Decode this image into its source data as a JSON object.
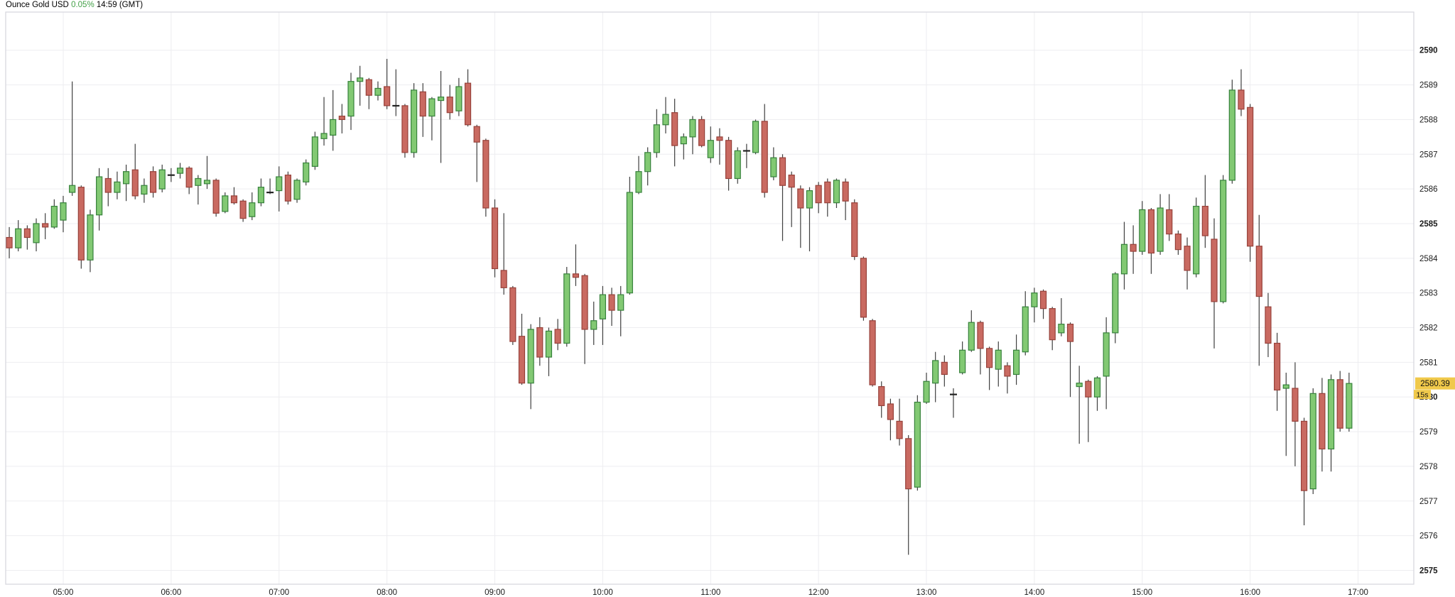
{
  "header": {
    "instrument": "Ounce Gold USD",
    "change_pct": "0.05%",
    "quote_time": "14:59 (GMT)"
  },
  "marker": {
    "current_price": "2580.39",
    "countdown": "15s"
  },
  "colors": {
    "up_fill": "#82c973",
    "up_border": "#37823c",
    "down_fill": "#c96a61",
    "down_border": "#97423b",
    "wick": "#3f3f3f",
    "doji": "#222222",
    "grid": "#ededf0",
    "plot_border": "#d8d8df",
    "marker_bg": "#f0c94b",
    "marker_text": "#111111",
    "axis_text": "#1a1a1a",
    "pct_green": "#43a047",
    "background": "#ffffff"
  },
  "chart_data": {
    "type": "candlestick",
    "title": "Ounce Gold USD 0.05% 14:59 (GMT)",
    "interval": "5m",
    "ylim": [
      2574.6,
      2591.1
    ],
    "time_range": [
      "04:28",
      "17:31"
    ],
    "grid": true,
    "price_ticks": [
      2575,
      2576,
      2577,
      2578,
      2579,
      2580,
      2581,
      2582,
      2583,
      2584,
      2585,
      2586,
      2587,
      2588,
      2589,
      2590
    ],
    "bold_price_ticks": [
      2575,
      2580,
      2585,
      2590
    ],
    "time_ticks": [
      "05:00",
      "06:00",
      "07:00",
      "08:00",
      "09:00",
      "10:00",
      "11:00",
      "12:00",
      "13:00",
      "14:00",
      "15:00",
      "16:00",
      "17:00"
    ],
    "last_price": 2580.39,
    "candles": [
      [
        "04:30",
        2584.6,
        2584.9,
        2584.0,
        2584.3
      ],
      [
        "04:35",
        2584.3,
        2585.1,
        2584.2,
        2584.85
      ],
      [
        "04:40",
        2584.85,
        2584.95,
        2584.25,
        2584.6
      ],
      [
        "04:45",
        2584.45,
        2585.15,
        2584.2,
        2585.0
      ],
      [
        "04:50",
        2585.0,
        2585.3,
        2584.55,
        2584.9
      ],
      [
        "04:55",
        2584.9,
        2585.7,
        2584.85,
        2585.5
      ],
      [
        "05:00",
        2585.1,
        2585.8,
        2584.75,
        2585.6
      ],
      [
        "05:05",
        2585.9,
        2589.1,
        2585.8,
        2586.1
      ],
      [
        "05:10",
        2586.05,
        2586.1,
        2583.7,
        2583.95
      ],
      [
        "05:15",
        2583.95,
        2585.4,
        2583.6,
        2585.25
      ],
      [
        "05:20",
        2585.25,
        2586.6,
        2584.8,
        2586.35
      ],
      [
        "05:25",
        2586.3,
        2586.6,
        2585.5,
        2585.9
      ],
      [
        "05:30",
        2585.9,
        2586.5,
        2585.7,
        2586.2
      ],
      [
        "05:35",
        2586.15,
        2586.7,
        2585.65,
        2586.5
      ],
      [
        "05:40",
        2586.55,
        2587.3,
        2585.7,
        2585.8
      ],
      [
        "05:45",
        2585.85,
        2586.3,
        2585.6,
        2586.1
      ],
      [
        "05:50",
        2586.5,
        2586.65,
        2585.75,
        2585.9
      ],
      [
        "05:55",
        2586.0,
        2586.7,
        2585.9,
        2586.55
      ],
      [
        "06:00",
        2586.4,
        2586.6,
        2586.2,
        2586.4
      ],
      [
        "06:05",
        2586.45,
        2586.75,
        2586.3,
        2586.6
      ],
      [
        "06:10",
        2586.6,
        2586.65,
        2585.85,
        2586.05
      ],
      [
        "06:15",
        2586.1,
        2586.4,
        2585.55,
        2586.3
      ],
      [
        "06:20",
        2586.15,
        2586.95,
        2586.0,
        2586.25
      ],
      [
        "06:25",
        2586.25,
        2586.3,
        2585.2,
        2585.3
      ],
      [
        "06:30",
        2585.35,
        2585.9,
        2585.3,
        2585.8
      ],
      [
        "06:35",
        2585.8,
        2586.05,
        2585.55,
        2585.6
      ],
      [
        "06:40",
        2585.65,
        2585.7,
        2585.05,
        2585.15
      ],
      [
        "06:45",
        2585.2,
        2585.9,
        2585.1,
        2585.6
      ],
      [
        "06:50",
        2585.6,
        2586.3,
        2585.5,
        2586.05
      ],
      [
        "06:55",
        2585.9,
        2586.3,
        2585.85,
        2585.9
      ],
      [
        "07:00",
        2585.95,
        2586.65,
        2585.35,
        2586.35
      ],
      [
        "07:05",
        2586.4,
        2586.5,
        2585.55,
        2585.65
      ],
      [
        "07:10",
        2585.7,
        2586.3,
        2585.6,
        2586.25
      ],
      [
        "07:15",
        2586.2,
        2586.85,
        2586.1,
        2586.75
      ],
      [
        "07:20",
        2586.65,
        2587.65,
        2586.55,
        2587.5
      ],
      [
        "07:25",
        2587.45,
        2588.65,
        2587.25,
        2587.6
      ],
      [
        "07:30",
        2587.55,
        2588.85,
        2587.1,
        2588.0
      ],
      [
        "07:35",
        2588.1,
        2588.45,
        2587.6,
        2588.0
      ],
      [
        "07:40",
        2588.1,
        2589.35,
        2587.7,
        2589.1
      ],
      [
        "07:45",
        2589.1,
        2589.55,
        2588.4,
        2589.2
      ],
      [
        "07:50",
        2589.15,
        2589.2,
        2588.3,
        2588.7
      ],
      [
        "07:55",
        2588.7,
        2589.1,
        2588.55,
        2588.9
      ],
      [
        "08:00",
        2588.95,
        2589.75,
        2588.3,
        2588.4
      ],
      [
        "08:05",
        2588.4,
        2589.45,
        2588.1,
        2588.4
      ],
      [
        "08:10",
        2588.4,
        2588.45,
        2586.9,
        2587.05
      ],
      [
        "08:15",
        2587.05,
        2589.05,
        2586.9,
        2588.85
      ],
      [
        "08:20",
        2588.8,
        2589.05,
        2587.5,
        2588.1
      ],
      [
        "08:25",
        2588.1,
        2588.65,
        2587.4,
        2588.6
      ],
      [
        "08:30",
        2588.55,
        2589.4,
        2586.75,
        2588.65
      ],
      [
        "08:35",
        2588.65,
        2589.0,
        2588.0,
        2588.2
      ],
      [
        "08:40",
        2588.25,
        2589.2,
        2588.1,
        2588.95
      ],
      [
        "08:45",
        2589.05,
        2589.45,
        2587.8,
        2587.85
      ],
      [
        "08:50",
        2587.8,
        2587.85,
        2586.2,
        2587.35
      ],
      [
        "08:55",
        2587.4,
        2587.45,
        2585.2,
        2585.45
      ],
      [
        "09:00",
        2585.45,
        2585.7,
        2583.45,
        2583.7
      ],
      [
        "09:05",
        2583.65,
        2585.3,
        2582.95,
        2583.15
      ],
      [
        "09:10",
        2583.15,
        2583.2,
        2581.5,
        2581.6
      ],
      [
        "09:15",
        2581.75,
        2582.4,
        2580.35,
        2580.4
      ],
      [
        "09:20",
        2580.4,
        2582.1,
        2579.65,
        2581.95
      ],
      [
        "09:25",
        2582.0,
        2582.3,
        2580.9,
        2581.15
      ],
      [
        "09:30",
        2581.15,
        2582.0,
        2580.6,
        2581.9
      ],
      [
        "09:35",
        2581.95,
        2582.25,
        2581.35,
        2581.55
      ],
      [
        "09:40",
        2581.55,
        2583.75,
        2581.45,
        2583.55
      ],
      [
        "09:45",
        2583.55,
        2584.4,
        2583.2,
        2583.45
      ],
      [
        "09:50",
        2583.5,
        2583.55,
        2580.95,
        2581.95
      ],
      [
        "09:55",
        2581.95,
        2582.75,
        2581.5,
        2582.2
      ],
      [
        "10:00",
        2582.25,
        2583.2,
        2581.5,
        2582.95
      ],
      [
        "10:05",
        2582.95,
        2583.15,
        2582.05,
        2582.5
      ],
      [
        "10:10",
        2582.5,
        2583.2,
        2581.75,
        2582.95
      ],
      [
        "10:15",
        2583.0,
        2586.35,
        2582.95,
        2585.9
      ],
      [
        "10:20",
        2585.9,
        2586.95,
        2585.85,
        2586.5
      ],
      [
        "10:25",
        2586.5,
        2587.2,
        2586.1,
        2587.05
      ],
      [
        "10:30",
        2587.05,
        2588.3,
        2586.9,
        2587.85
      ],
      [
        "10:35",
        2587.85,
        2588.65,
        2587.6,
        2588.15
      ],
      [
        "10:40",
        2588.2,
        2588.6,
        2586.65,
        2587.25
      ],
      [
        "10:45",
        2587.3,
        2587.6,
        2586.85,
        2587.5
      ],
      [
        "10:50",
        2587.5,
        2588.1,
        2587.0,
        2588.0
      ],
      [
        "10:55",
        2588.0,
        2588.1,
        2587.2,
        2587.25
      ],
      [
        "11:00",
        2586.9,
        2587.8,
        2586.75,
        2587.4
      ],
      [
        "11:05",
        2587.5,
        2587.75,
        2586.7,
        2587.4
      ],
      [
        "11:10",
        2587.4,
        2587.5,
        2585.95,
        2586.3
      ],
      [
        "11:15",
        2586.3,
        2587.2,
        2586.15,
        2587.1
      ],
      [
        "11:20",
        2587.1,
        2587.3,
        2586.6,
        2587.1
      ],
      [
        "11:25",
        2587.05,
        2588.0,
        2587.0,
        2587.95
      ],
      [
        "11:30",
        2587.95,
        2588.45,
        2585.75,
        2585.9
      ],
      [
        "11:35",
        2586.35,
        2587.2,
        2586.25,
        2586.9
      ],
      [
        "11:40",
        2586.9,
        2587.0,
        2584.5,
        2586.1
      ],
      [
        "11:45",
        2586.4,
        2586.5,
        2584.9,
        2586.05
      ],
      [
        "11:50",
        2586.0,
        2586.1,
        2584.3,
        2585.45
      ],
      [
        "11:55",
        2585.45,
        2586.05,
        2584.2,
        2585.95
      ],
      [
        "12:00",
        2586.1,
        2586.2,
        2585.3,
        2585.6
      ],
      [
        "12:05",
        2586.2,
        2586.3,
        2585.2,
        2585.6
      ],
      [
        "12:10",
        2585.6,
        2586.3,
        2585.45,
        2586.25
      ],
      [
        "12:15",
        2586.2,
        2586.3,
        2585.1,
        2585.65
      ],
      [
        "12:20",
        2585.6,
        2585.7,
        2583.95,
        2584.05
      ],
      [
        "12:25",
        2584.0,
        2584.05,
        2582.2,
        2582.3
      ],
      [
        "12:30",
        2582.2,
        2582.25,
        2580.3,
        2580.35
      ],
      [
        "12:35",
        2580.3,
        2580.45,
        2579.4,
        2579.75
      ],
      [
        "12:40",
        2579.8,
        2579.95,
        2578.75,
        2579.35
      ],
      [
        "12:45",
        2579.3,
        2579.95,
        2578.6,
        2578.8
      ],
      [
        "12:50",
        2578.8,
        2578.9,
        2575.45,
        2577.35
      ],
      [
        "12:55",
        2577.4,
        2580.05,
        2577.3,
        2579.85
      ],
      [
        "13:00",
        2579.85,
        2580.7,
        2579.8,
        2580.45
      ],
      [
        "13:05",
        2580.4,
        2581.3,
        2579.85,
        2581.05
      ],
      [
        "13:10",
        2581.0,
        2581.2,
        2580.3,
        2580.65
      ],
      [
        "13:15",
        2580.1,
        2580.25,
        2579.4,
        2580.05
      ],
      [
        "13:20",
        2580.7,
        2581.6,
        2580.65,
        2581.35
      ],
      [
        "13:25",
        2581.35,
        2582.5,
        2581.3,
        2582.15
      ],
      [
        "13:30",
        2582.15,
        2582.2,
        2580.65,
        2581.4
      ],
      [
        "13:35",
        2581.4,
        2581.45,
        2580.2,
        2580.85
      ],
      [
        "13:40",
        2580.8,
        2581.6,
        2580.3,
        2581.35
      ],
      [
        "13:45",
        2580.9,
        2581.0,
        2580.1,
        2580.6
      ],
      [
        "13:50",
        2580.65,
        2581.8,
        2580.35,
        2581.35
      ],
      [
        "13:55",
        2581.3,
        2583.05,
        2581.2,
        2582.6
      ],
      [
        "14:00",
        2582.6,
        2583.15,
        2582.15,
        2583.0
      ],
      [
        "14:05",
        2583.05,
        2583.1,
        2582.25,
        2582.55
      ],
      [
        "14:10",
        2582.55,
        2582.6,
        2581.35,
        2581.65
      ],
      [
        "14:15",
        2581.85,
        2582.85,
        2581.75,
        2582.1
      ],
      [
        "14:20",
        2582.1,
        2582.15,
        2580.0,
        2581.6
      ],
      [
        "14:25",
        2580.3,
        2580.9,
        2578.65,
        2580.4
      ],
      [
        "14:30",
        2580.45,
        2580.5,
        2578.7,
        2580.0
      ],
      [
        "14:35",
        2580.0,
        2580.6,
        2579.6,
        2580.55
      ],
      [
        "14:40",
        2580.6,
        2582.3,
        2579.65,
        2581.85
      ],
      [
        "14:45",
        2581.85,
        2583.6,
        2581.55,
        2583.55
      ],
      [
        "14:50",
        2583.55,
        2585.05,
        2583.1,
        2584.4
      ],
      [
        "14:55",
        2584.4,
        2584.95,
        2583.55,
        2584.2
      ],
      [
        "15:00",
        2584.2,
        2585.65,
        2584.1,
        2585.4
      ],
      [
        "15:05",
        2585.4,
        2585.45,
        2583.55,
        2584.15
      ],
      [
        "15:10",
        2584.2,
        2585.85,
        2584.1,
        2585.45
      ],
      [
        "15:15",
        2585.4,
        2585.85,
        2584.5,
        2584.7
      ],
      [
        "15:20",
        2584.7,
        2584.8,
        2584.1,
        2584.25
      ],
      [
        "15:25",
        2584.35,
        2584.6,
        2583.1,
        2583.65
      ],
      [
        "15:30",
        2583.55,
        2585.75,
        2583.45,
        2585.5
      ],
      [
        "15:35",
        2585.5,
        2586.4,
        2584.3,
        2584.65
      ],
      [
        "15:40",
        2584.55,
        2585.15,
        2581.4,
        2582.75
      ],
      [
        "15:45",
        2582.75,
        2586.4,
        2582.7,
        2586.25
      ],
      [
        "15:50",
        2586.25,
        2589.15,
        2586.15,
        2588.85
      ],
      [
        "15:55",
        2588.85,
        2589.45,
        2588.1,
        2588.3
      ],
      [
        "16:00",
        2588.35,
        2588.45,
        2583.9,
        2584.35
      ],
      [
        "16:05",
        2584.35,
        2585.25,
        2580.9,
        2582.9
      ],
      [
        "16:10",
        2582.6,
        2583.0,
        2581.15,
        2581.55
      ],
      [
        "16:15",
        2581.55,
        2581.85,
        2579.6,
        2580.2
      ],
      [
        "16:20",
        2580.25,
        2580.7,
        2578.3,
        2580.35
      ],
      [
        "16:25",
        2580.25,
        2581.0,
        2578.0,
        2579.3
      ],
      [
        "16:30",
        2579.3,
        2579.4,
        2576.3,
        2577.3
      ],
      [
        "16:35",
        2577.35,
        2580.25,
        2577.2,
        2580.1
      ],
      [
        "16:40",
        2580.1,
        2580.55,
        2577.85,
        2578.5
      ],
      [
        "16:45",
        2578.5,
        2580.65,
        2577.85,
        2580.5
      ],
      [
        "16:50",
        2580.5,
        2580.75,
        2579.0,
        2579.1
      ],
      [
        "16:55",
        2579.1,
        2580.7,
        2579.0,
        2580.39
      ]
    ]
  }
}
